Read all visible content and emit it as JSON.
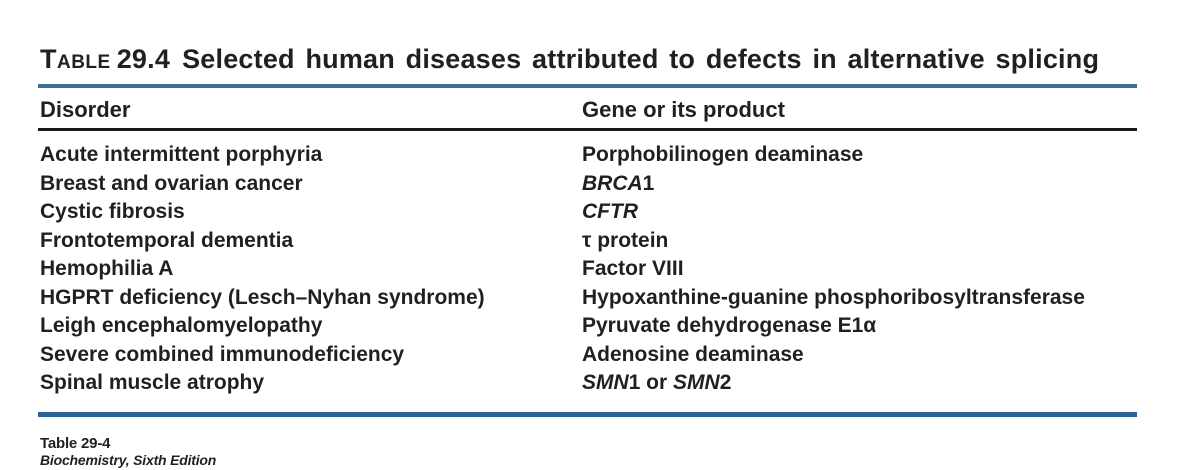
{
  "title": {
    "label": "Table",
    "number": "29.4",
    "text": "Selected human diseases attributed to defects in alternative splicing"
  },
  "table": {
    "columns": [
      "Disorder",
      "Gene or its product"
    ],
    "rows": [
      {
        "disorder": "Acute intermittent porphyria",
        "gene": [
          {
            "t": "Porphobilinogen deaminase"
          }
        ]
      },
      {
        "disorder": "Breast and ovarian cancer",
        "gene": [
          {
            "t": "BRCA",
            "i": true
          },
          {
            "t": "1"
          }
        ]
      },
      {
        "disorder": "Cystic fibrosis",
        "gene": [
          {
            "t": "CFTR",
            "i": true
          }
        ]
      },
      {
        "disorder": "Frontotemporal dementia",
        "gene": [
          {
            "t": "τ protein"
          }
        ]
      },
      {
        "disorder": "Hemophilia A",
        "gene": [
          {
            "t": "Factor VIII"
          }
        ]
      },
      {
        "disorder": "HGPRT deficiency (Lesch–Nyhan syndrome)",
        "gene": [
          {
            "t": "Hypoxanthine-guanine phosphoribosyltransferase"
          }
        ]
      },
      {
        "disorder": "Leigh encephalomyelopathy",
        "gene": [
          {
            "t": "Pyruvate dehydrogenase E1α"
          }
        ]
      },
      {
        "disorder": "Severe combined immunodeficiency",
        "gene": [
          {
            "t": "Adenosine deaminase"
          }
        ]
      },
      {
        "disorder": "Spinal muscle atrophy",
        "gene": [
          {
            "t": "SMN",
            "i": true
          },
          {
            "t": "1 or "
          },
          {
            "t": "SMN",
            "i": true
          },
          {
            "t": "2"
          }
        ]
      }
    ]
  },
  "footer": {
    "line1": "Table 29-4",
    "line2": "Biochemistry, Sixth Edition"
  },
  "colors": {
    "text_color": "#231f20",
    "top_rule": "#3c7394",
    "header_rule": "#1a1a1a",
    "bottom_rule": "#2a6496"
  }
}
